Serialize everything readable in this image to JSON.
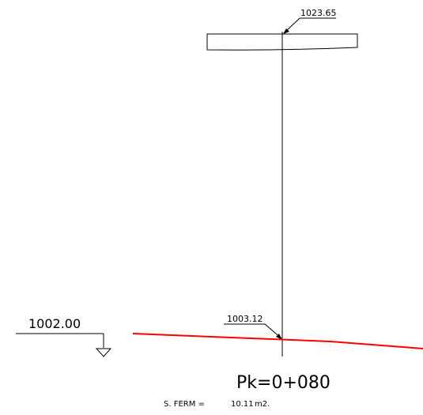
{
  "drawing": {
    "top_elevation": "1023.65",
    "ground_elevation": "1003.12",
    "datum_elevation": "1002.00",
    "station_label": "Pk=0+080",
    "area_label": "S. FERM =",
    "area_value": "10.11",
    "area_unit": "m2.",
    "ground_color": "#ff0000"
  }
}
